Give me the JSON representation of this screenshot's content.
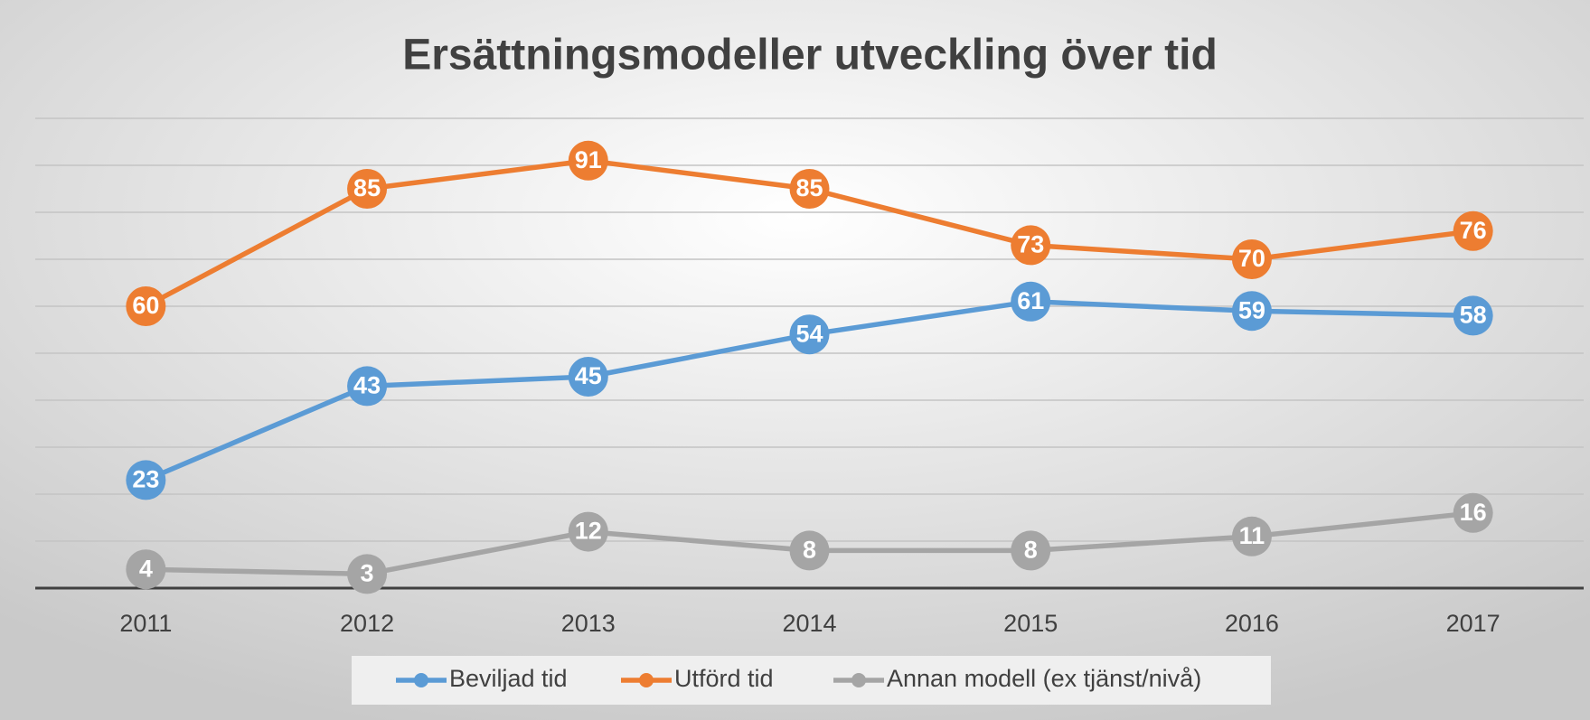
{
  "chart_data": {
    "type": "line",
    "title": "Ersättningsmodeller utveckling över tid",
    "categories": [
      "2011",
      "2012",
      "2013",
      "2014",
      "2015",
      "2016",
      "2017"
    ],
    "series": [
      {
        "name": "Beviljad tid",
        "color": "#5b9bd5",
        "values": [
          23,
          43,
          45,
          54,
          61,
          59,
          58
        ]
      },
      {
        "name": "Utförd tid",
        "color": "#ed7d31",
        "values": [
          60,
          85,
          91,
          85,
          73,
          70,
          76
        ]
      },
      {
        "name": "Annan modell (ex tjänst/nivå)",
        "color": "#a5a5a5",
        "values": [
          4,
          3,
          12,
          8,
          8,
          11,
          16
        ]
      }
    ],
    "ylim": [
      0,
      100
    ],
    "yticks": [
      0,
      10,
      20,
      30,
      40,
      50,
      60,
      70,
      80,
      90,
      100
    ],
    "grid": true,
    "legend": "bottom"
  }
}
